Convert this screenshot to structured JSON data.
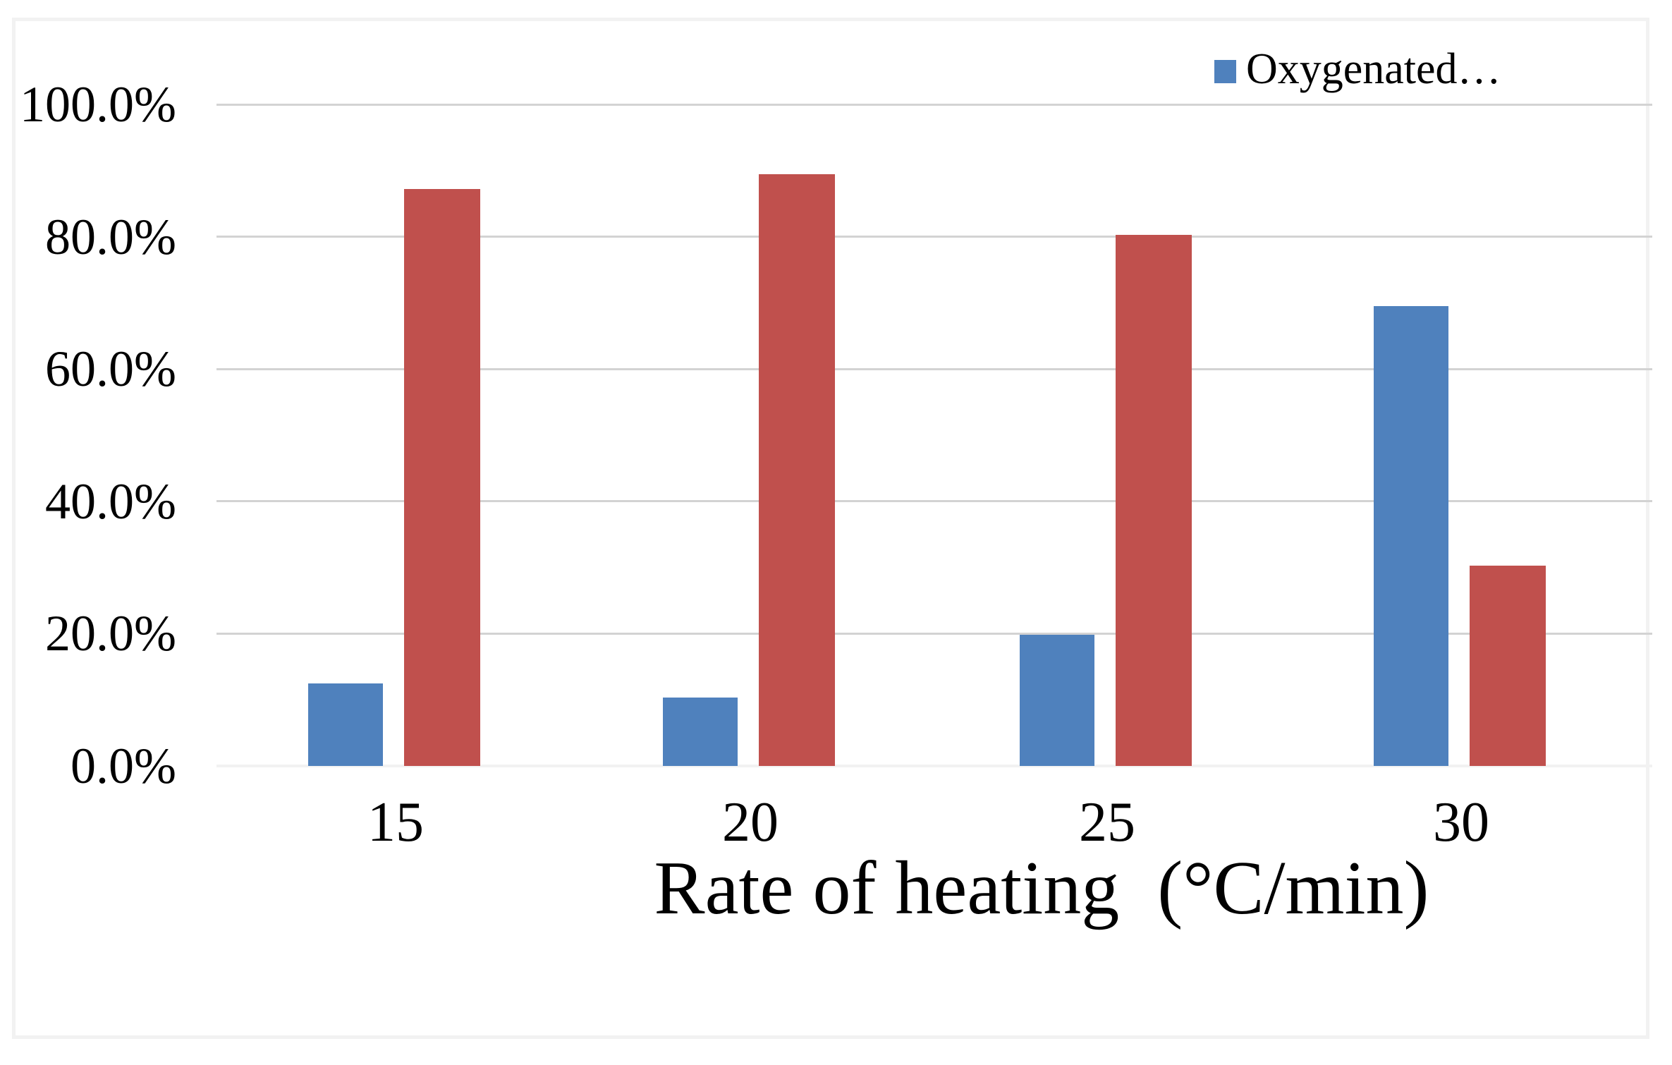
{
  "colors": {
    "series_blue": "#4F81BD",
    "series_red": "#C0504D",
    "gridline": "#D3D3D3",
    "baseline": "#F2F2F2",
    "border": "#F2F2F2",
    "text": "#000000"
  },
  "chart_data": {
    "type": "bar",
    "title": "",
    "xlabel": "Rate of heating  (°C/min)",
    "ylabel": "",
    "categories": [
      "15",
      "20",
      "25",
      "30"
    ],
    "series": [
      {
        "name": "Oxygenated…",
        "color_key": "series_blue",
        "values": [
          12.5,
          10.3,
          19.8,
          69.5
        ]
      },
      {
        "name": "",
        "color_key": "series_red",
        "values": [
          87.2,
          89.5,
          80.3,
          30.3
        ]
      }
    ],
    "value_format": "percent",
    "ylim": [
      0,
      100
    ],
    "yticks": [
      {
        "value": 100,
        "label": "100.0%"
      },
      {
        "value": 80,
        "label": "80.0%"
      },
      {
        "value": 60,
        "label": "60.0%"
      },
      {
        "value": 40,
        "label": "40.0%"
      },
      {
        "value": 20,
        "label": "20.0%"
      },
      {
        "value": 0,
        "label": "0.0%"
      }
    ],
    "grid": "horizontal",
    "legend": {
      "label": "Oxygenated…",
      "position": "top-right"
    }
  }
}
